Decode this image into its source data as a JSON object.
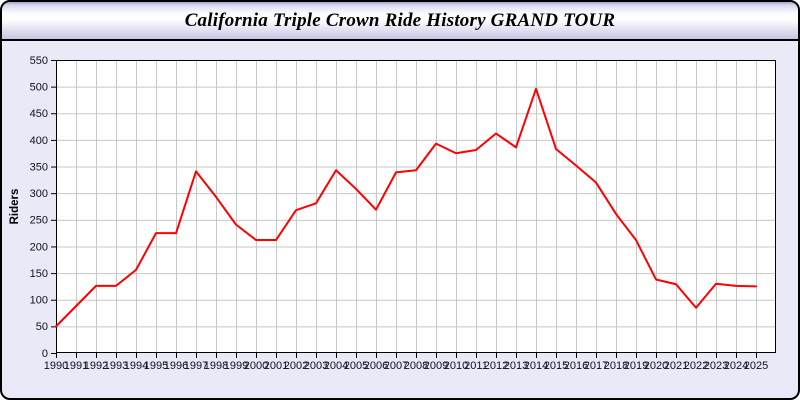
{
  "header": {
    "title": "California Triple Crown Ride History GRAND TOUR"
  },
  "colors": {
    "line": "#ff0000",
    "card_background": "#e9e9f8",
    "titlebar_lavender": "#c6c6e3",
    "plot_background": "#ffffff",
    "grid": "#c8c8c8",
    "axis": "#000000"
  },
  "chart_data": {
    "type": "line",
    "title": "California Triple Crown Ride History GRAND TOUR",
    "xlabel": "",
    "ylabel": "Riders",
    "ylim": [
      0,
      550
    ],
    "xlim": [
      1990,
      2026
    ],
    "y_ticks": [
      0,
      50,
      100,
      150,
      200,
      250,
      300,
      350,
      400,
      450,
      500,
      550
    ],
    "grid": true,
    "legend": false,
    "x": [
      1990,
      1991,
      1992,
      1993,
      1994,
      1995,
      1996,
      1997,
      1998,
      1999,
      2000,
      2001,
      2002,
      2003,
      2004,
      2005,
      2006,
      2007,
      2008,
      2009,
      2010,
      2011,
      2012,
      2013,
      2014,
      2015,
      2016,
      2017,
      2018,
      2019,
      2020,
      2021,
      2022,
      2023,
      2024,
      2025
    ],
    "series": [
      {
        "name": "Riders",
        "color": "#ff0000",
        "values": [
          50,
          88,
          126,
          126,
          156,
          225,
          225,
          341,
          293,
          241,
          212,
          212,
          268,
          281,
          343,
          308,
          269,
          339,
          343,
          393,
          375,
          381,
          412,
          386,
          496,
          383,
          352,
          320,
          261,
          212,
          138,
          129,
          85,
          130,
          126,
          125
        ]
      }
    ]
  }
}
